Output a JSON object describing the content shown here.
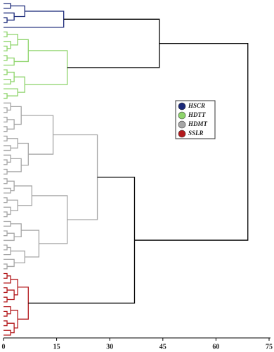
{
  "chart_data": {
    "type": "dendrogram",
    "xlim": [
      0,
      75
    ],
    "xticks": [
      0,
      15,
      30,
      45,
      60,
      75
    ],
    "link_color": "#000000",
    "tree": {
      "height": 69,
      "children": [
        {
          "height": 44,
          "children": [
            {
              "name": "HSCR",
              "color": "#1c2a7a",
              "height": 17,
              "children": [
                {
                  "height": 6,
                  "children": [
                    {
                      "height": 2,
                      "children": [
                        0,
                        0
                      ]
                    },
                    {
                      "height": 3,
                      "children": [
                        0,
                        {
                          "height": 1,
                          "children": [
                            0,
                            0
                          ]
                        }
                      ]
                    }
                  ]
                },
                0
              ]
            },
            {
              "name": "HDTT",
              "color": "#8ed46b",
              "height": 18,
              "children": [
                {
                  "height": 7,
                  "children": [
                    {
                      "height": 4,
                      "children": [
                        {
                          "height": 1,
                          "children": [
                            0,
                            0
                          ]
                        },
                        {
                          "height": 2,
                          "children": [
                            0,
                            {
                              "height": 1,
                              "children": [
                                0,
                                0
                              ]
                            }
                          ]
                        }
                      ]
                    },
                    {
                      "height": 3,
                      "children": [
                        {
                          "height": 1,
                          "children": [
                            0,
                            0
                          ]
                        },
                        0
                      ]
                    }
                  ]
                },
                {
                  "height": 6,
                  "children": [
                    {
                      "height": 3,
                      "children": [
                        {
                          "height": 1,
                          "children": [
                            0,
                            0
                          ]
                        },
                        {
                          "height": 2,
                          "children": [
                            0,
                            0
                          ]
                        }
                      ]
                    },
                    {
                      "height": 4,
                      "children": [
                        0,
                        {
                          "height": 1,
                          "children": [
                            0,
                            0
                          ]
                        }
                      ]
                    }
                  ]
                }
              ]
            }
          ]
        },
        {
          "height": 37,
          "children": [
            {
              "name": "HDMT",
              "color": "#a6a6a6",
              "height": 26.5,
              "children": [
                {
                  "height": 14,
                  "children": [
                    {
                      "height": 5,
                      "children": [
                        {
                          "height": 2,
                          "children": [
                            0,
                            {
                              "height": 1,
                              "children": [
                                0,
                                0
                              ]
                            }
                          ]
                        },
                        {
                          "height": 3,
                          "children": [
                            {
                              "height": 1,
                              "children": [
                                0,
                                0
                              ]
                            },
                            {
                              "height": 1,
                              "children": [
                                0,
                                0
                              ]
                            }
                          ]
                        }
                      ]
                    },
                    {
                      "height": 7,
                      "children": [
                        {
                          "height": 4,
                          "children": [
                            {
                              "height": 1,
                              "children": [
                                0,
                                0
                              ]
                            },
                            {
                              "height": 2,
                              "children": [
                                0,
                                0
                              ]
                            }
                          ]
                        },
                        {
                          "height": 5,
                          "children": [
                            {
                              "height": 2,
                              "children": [
                                0,
                                {
                                  "height": 1,
                                  "children": [
                                    0,
                                    0
                                  ]
                                }
                              ]
                            },
                            {
                              "height": 1,
                              "children": [
                                0,
                                0
                              ]
                            }
                          ]
                        }
                      ]
                    }
                  ]
                },
                {
                  "height": 18,
                  "children": [
                    {
                      "height": 8,
                      "children": [
                        {
                          "height": 3,
                          "children": [
                            {
                              "height": 1,
                              "children": [
                                0,
                                0
                              ]
                            },
                            {
                              "height": 2,
                              "children": [
                                0,
                                0
                              ]
                            }
                          ]
                        },
                        {
                          "height": 4,
                          "children": [
                            {
                              "height": 1,
                              "children": [
                                0,
                                0
                              ]
                            },
                            {
                              "height": 2,
                              "children": [
                                0,
                                {
                                  "height": 1,
                                  "children": [
                                    0,
                                    0
                                  ]
                                }
                              ]
                            }
                          ]
                        }
                      ]
                    },
                    {
                      "height": 10,
                      "children": [
                        {
                          "height": 5,
                          "children": [
                            {
                              "height": 2,
                              "children": [
                                0,
                                0
                              ]
                            },
                            {
                              "height": 3,
                              "children": [
                                {
                                  "height": 1,
                                  "children": [
                                    0,
                                    0
                                  ]
                                },
                                0
                              ]
                            }
                          ]
                        },
                        {
                          "height": 6,
                          "children": [
                            {
                              "height": 2,
                              "children": [
                                {
                                  "height": 1,
                                  "children": [
                                    0,
                                    0
                                  ]
                                },
                                0
                              ]
                            },
                            {
                              "height": 3,
                              "children": [
                                0,
                                {
                                  "height": 1,
                                  "children": [
                                    0,
                                    0
                                  ]
                                }
                              ]
                            }
                          ]
                        }
                      ]
                    }
                  ]
                }
              ]
            },
            {
              "name": "SSLR",
              "color": "#b3191c",
              "height": 7,
              "children": [
                {
                  "height": 4,
                  "children": [
                    {
                      "height": 2,
                      "children": [
                        {
                          "height": 1,
                          "children": [
                            0,
                            0
                          ]
                        },
                        0
                      ]
                    },
                    {
                      "height": 3,
                      "children": [
                        {
                          "height": 1,
                          "children": [
                            0,
                            0
                          ]
                        },
                        {
                          "height": 1,
                          "children": [
                            0,
                            0
                          ]
                        }
                      ]
                    }
                  ]
                },
                {
                  "height": 4,
                  "children": [
                    {
                      "height": 2,
                      "children": [
                        0,
                        {
                          "height": 1,
                          "children": [
                            0,
                            0
                          ]
                        }
                      ]
                    },
                    {
                      "height": 3,
                      "children": [
                        {
                          "height": 1,
                          "children": [
                            0,
                            0
                          ]
                        },
                        {
                          "height": 2,
                          "children": [
                            0,
                            0
                          ]
                        }
                      ]
                    }
                  ]
                }
              ]
            }
          ]
        }
      ]
    }
  }
}
